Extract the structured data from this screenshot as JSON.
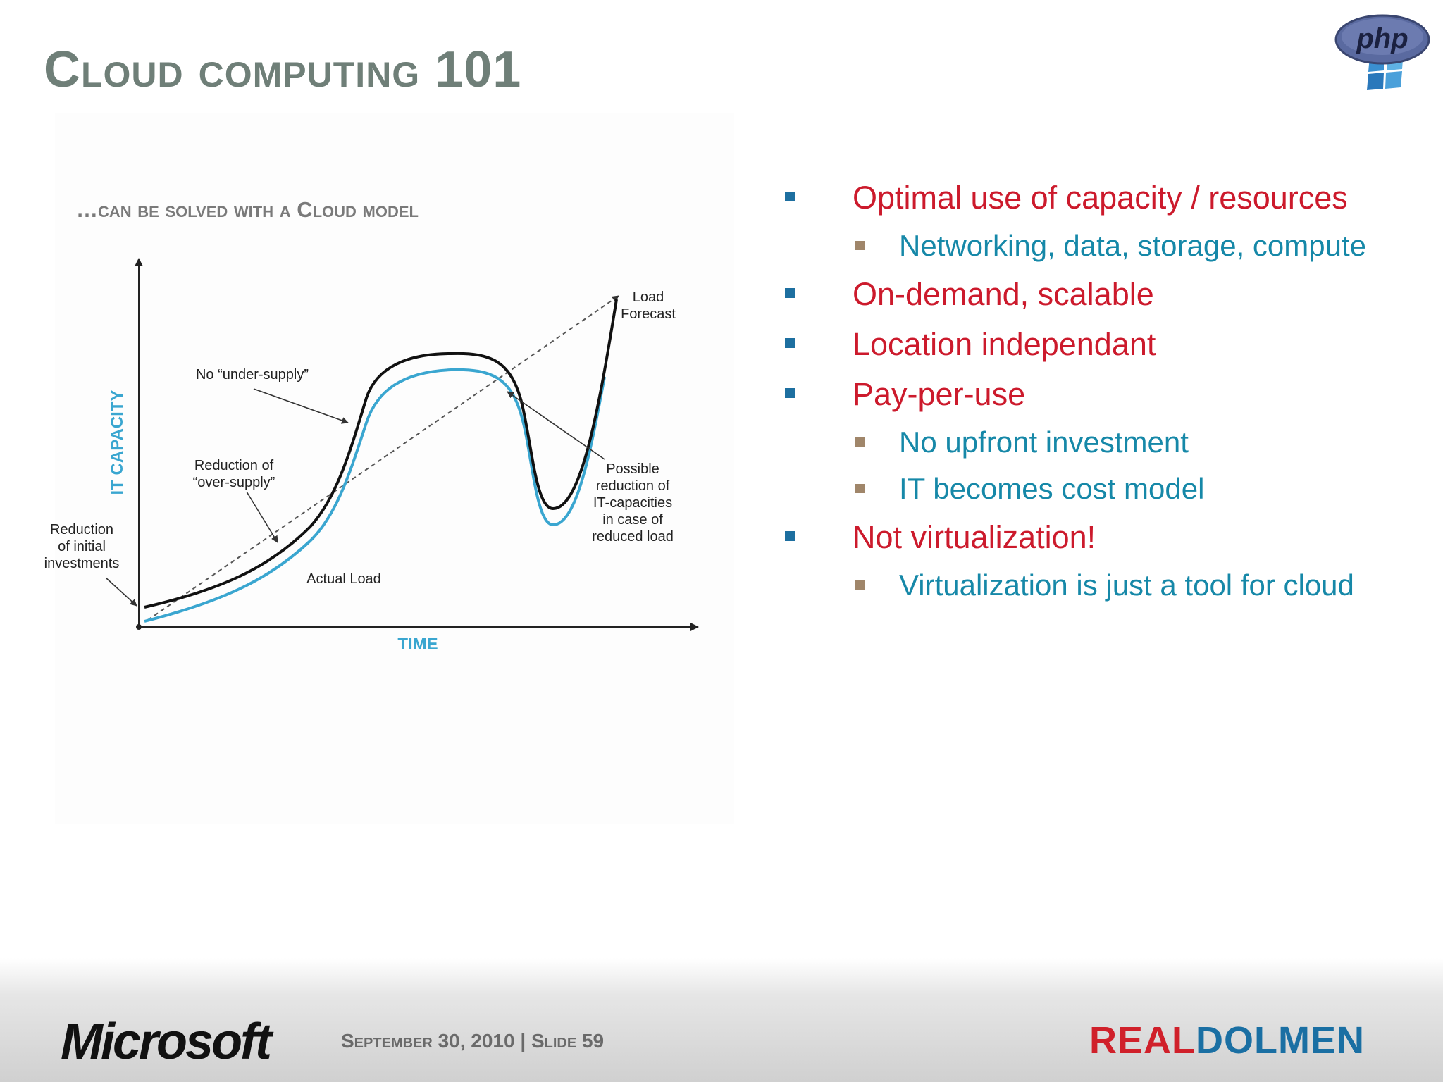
{
  "slide": {
    "title": "Cloud computing 101",
    "footer_date": "September 30, 2010 | Slide 59",
    "footer_left_logo": "Microsoft",
    "footer_right_logo_part1": "REAL",
    "footer_right_logo_part2": "DOLMEN",
    "corner_logo": "php"
  },
  "figure": {
    "heading": "…can be solved with a Cloud model",
    "y_axis_label": "IT CAPACITY",
    "x_axis_label": "TIME",
    "annotations": {
      "load_forecast_1": "Load",
      "load_forecast_2": "Forecast",
      "no_under_supply": "No “under-supply”",
      "over_supply_1": "Reduction of",
      "over_supply_2": "“over-supply”",
      "initial_1": "Reduction",
      "initial_2": "of initial",
      "initial_3": "investments",
      "actual_load": "Actual Load",
      "possible_1": "Possible",
      "possible_2": "reduction of",
      "possible_3": "IT-capacities",
      "possible_4": "in case of",
      "possible_5": "reduced load"
    },
    "colors": {
      "capacity_line": "#111111",
      "load_line": "#3aa6d0",
      "forecast_line": "#555555"
    }
  },
  "bullets": [
    {
      "level": 1,
      "text": "Optimal use of capacity / resources"
    },
    {
      "level": 2,
      "text": "Networking, data, storage, compute"
    },
    {
      "level": 1,
      "text": "On-demand, scalable"
    },
    {
      "level": 1,
      "text": "Location independant"
    },
    {
      "level": 1,
      "text": "Pay-per-use"
    },
    {
      "level": 2,
      "text": "No upfront investment"
    },
    {
      "level": 2,
      "text": "IT becomes cost model"
    },
    {
      "level": 1,
      "text": "Not virtualization!"
    },
    {
      "level": 2,
      "text": "Virtualization is just a tool for cloud"
    }
  ]
}
